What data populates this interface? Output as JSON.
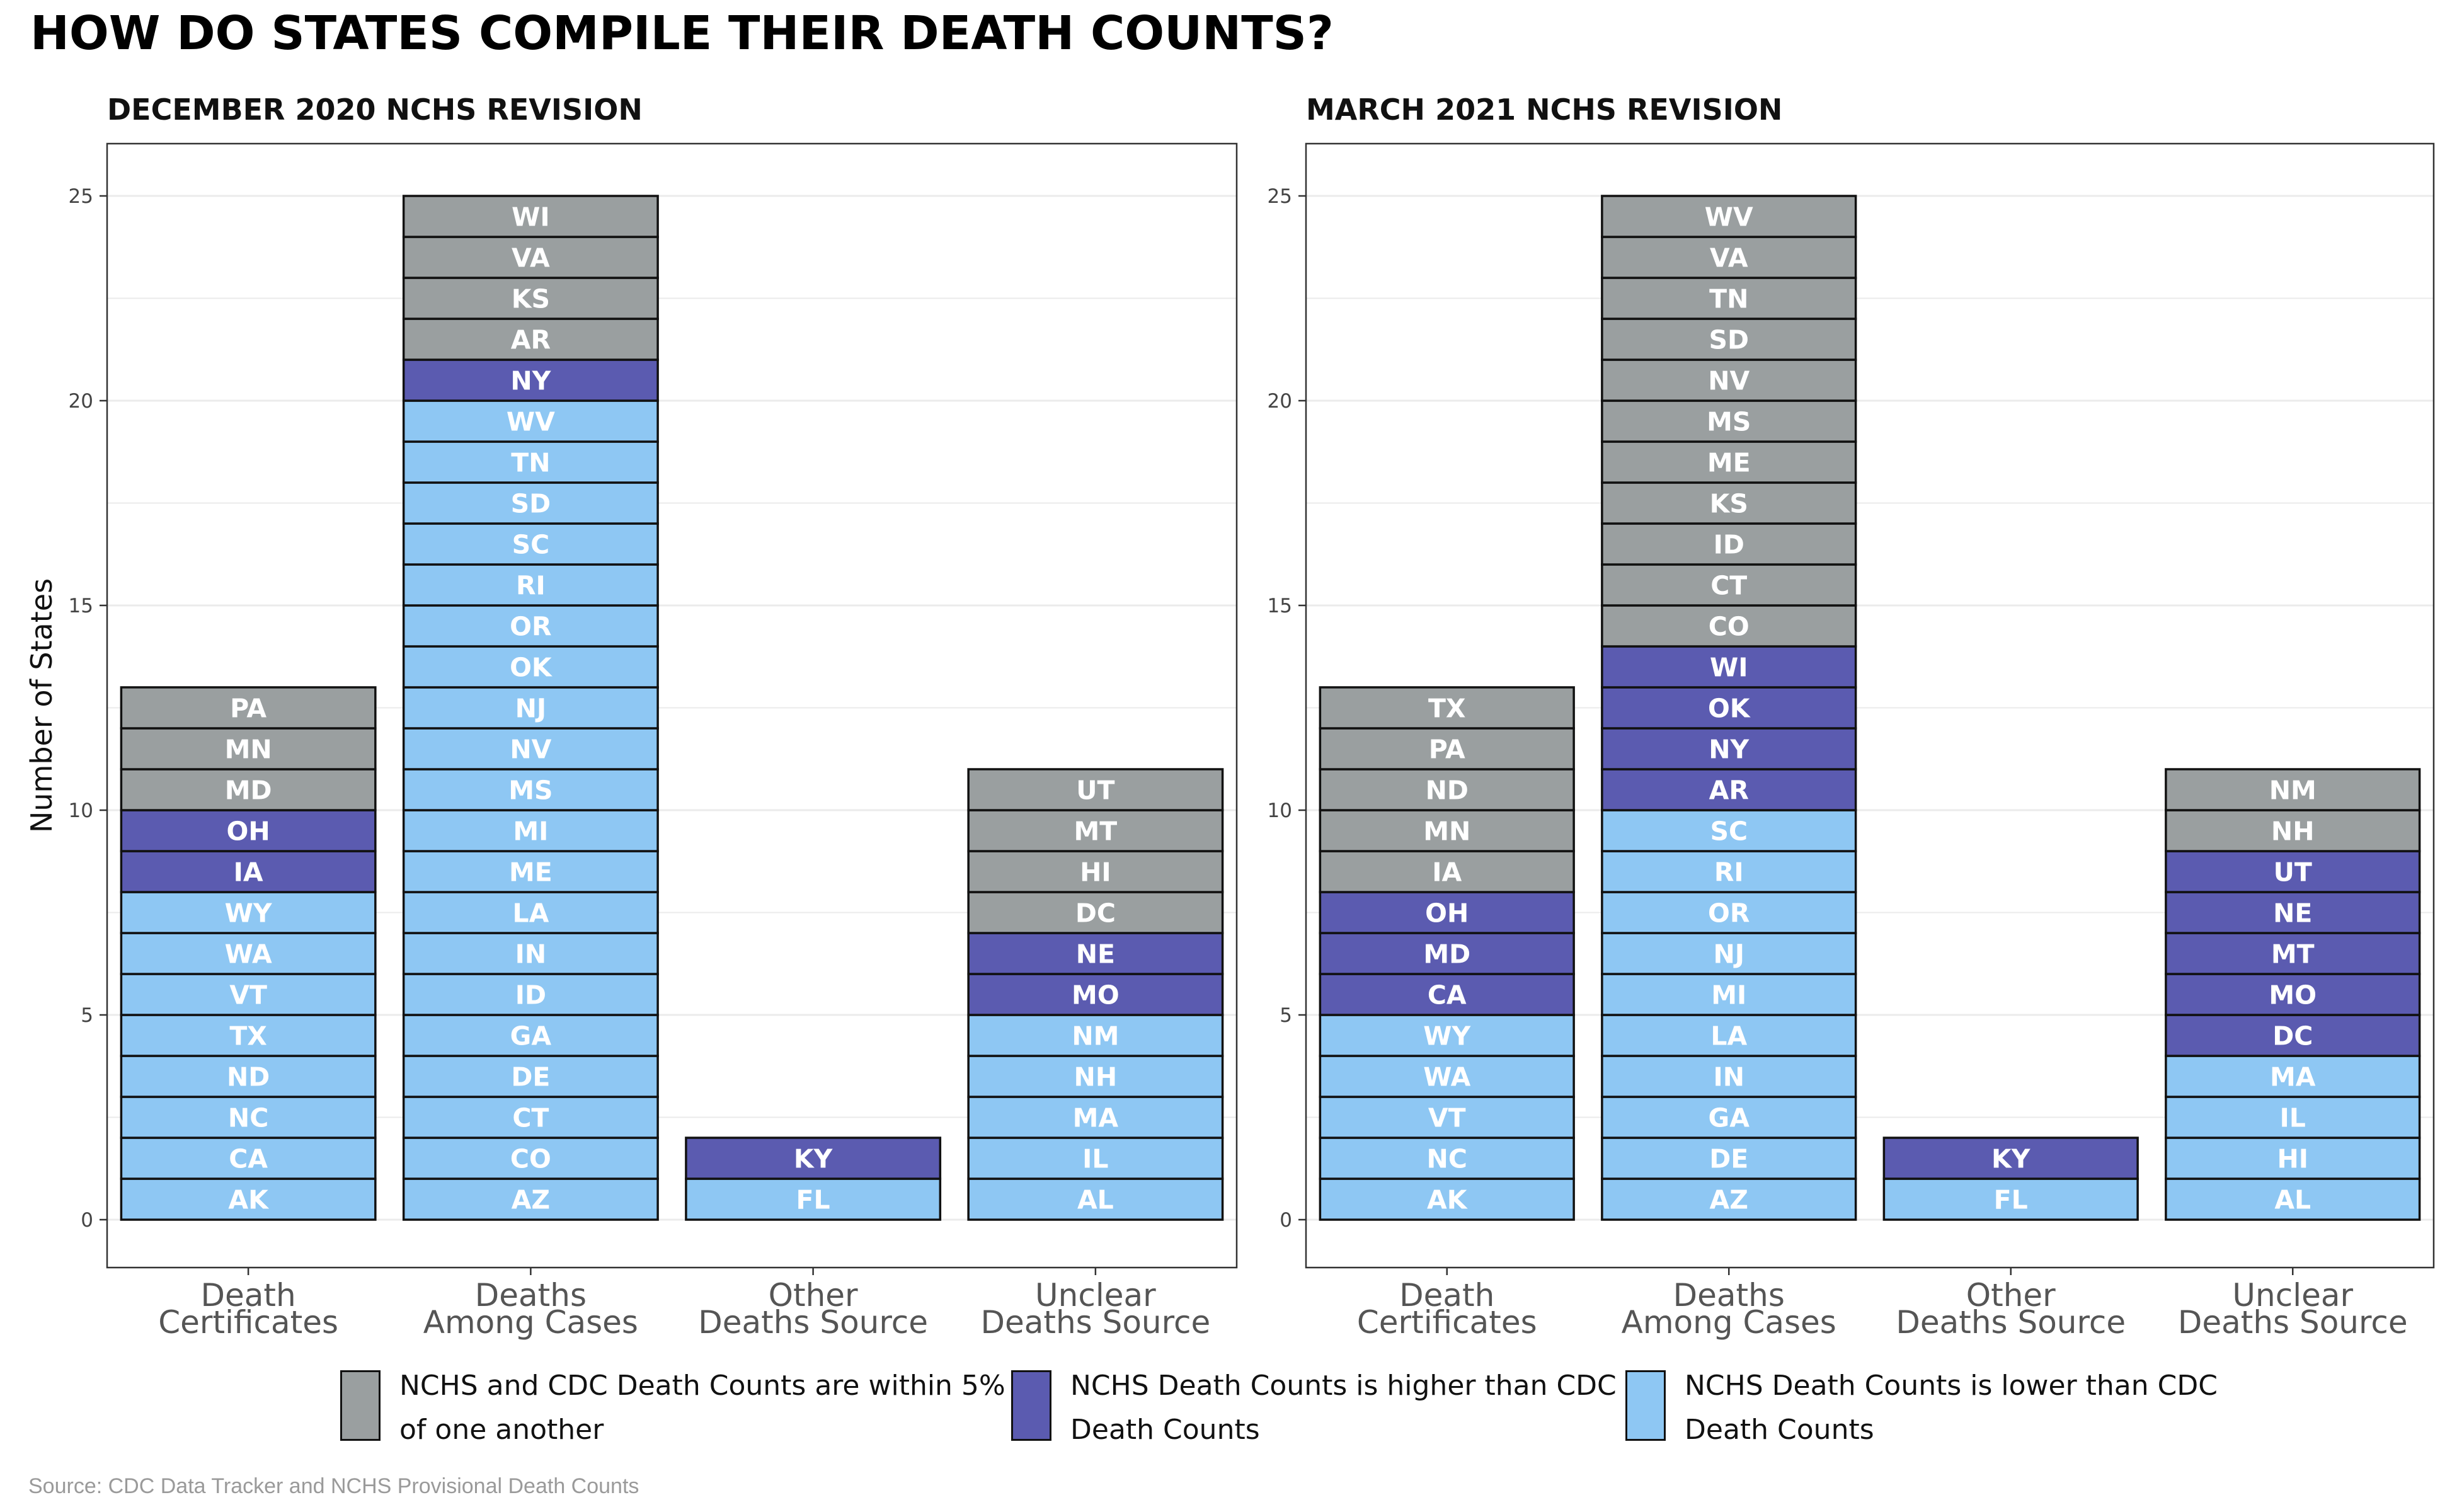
{
  "title": "HOW DO STATES COMPILE THEIR DEATH COUNTS?",
  "source": "Source: CDC Data Tracker and NCHS Provisional Death Counts",
  "ylabel": "Number of States",
  "colors": {
    "within_5pct": "#9a9fa0",
    "higher": "#5b5bb0",
    "lower": "#8ec7f3",
    "outline": "#111111",
    "grid": "#ebebeb"
  },
  "legend": [
    {
      "key": "within_5pct",
      "label": "NCHS and CDC Death Counts are within 5% of one another"
    },
    {
      "key": "higher",
      "label": "NCHS Death Counts is higher than CDC Death Counts"
    },
    {
      "key": "lower",
      "label": "NCHS Death Counts is lower than CDC Death Counts"
    }
  ],
  "chart_data": [
    {
      "type": "bar",
      "stacked": true,
      "title": "DECEMBER 2020 NCHS REVISION",
      "categories": [
        "Death Certificates",
        "Deaths Among Cases",
        "Other Deaths Source",
        "Unclear Deaths Source"
      ],
      "ylim": [
        0,
        25
      ],
      "yticks": [
        0,
        5,
        10,
        15,
        20,
        25
      ],
      "grid": true,
      "stacks": [
        {
          "category": "Death Certificates",
          "segments": [
            {
              "label": "AK",
              "group": "lower"
            },
            {
              "label": "CA",
              "group": "lower"
            },
            {
              "label": "NC",
              "group": "lower"
            },
            {
              "label": "ND",
              "group": "lower"
            },
            {
              "label": "TX",
              "group": "lower"
            },
            {
              "label": "VT",
              "group": "lower"
            },
            {
              "label": "WA",
              "group": "lower"
            },
            {
              "label": "WY",
              "group": "lower"
            },
            {
              "label": "IA",
              "group": "higher"
            },
            {
              "label": "OH",
              "group": "higher"
            },
            {
              "label": "MD",
              "group": "within_5pct"
            },
            {
              "label": "MN",
              "group": "within_5pct"
            },
            {
              "label": "PA",
              "group": "within_5pct"
            }
          ]
        },
        {
          "category": "Deaths Among Cases",
          "segments": [
            {
              "label": "AZ",
              "group": "lower"
            },
            {
              "label": "CO",
              "group": "lower"
            },
            {
              "label": "CT",
              "group": "lower"
            },
            {
              "label": "DE",
              "group": "lower"
            },
            {
              "label": "GA",
              "group": "lower"
            },
            {
              "label": "ID",
              "group": "lower"
            },
            {
              "label": "IN",
              "group": "lower"
            },
            {
              "label": "LA",
              "group": "lower"
            },
            {
              "label": "ME",
              "group": "lower"
            },
            {
              "label": "MI",
              "group": "lower"
            },
            {
              "label": "MS",
              "group": "lower"
            },
            {
              "label": "NV",
              "group": "lower"
            },
            {
              "label": "NJ",
              "group": "lower"
            },
            {
              "label": "OK",
              "group": "lower"
            },
            {
              "label": "OR",
              "group": "lower"
            },
            {
              "label": "RI",
              "group": "lower"
            },
            {
              "label": "SC",
              "group": "lower"
            },
            {
              "label": "SD",
              "group": "lower"
            },
            {
              "label": "TN",
              "group": "lower"
            },
            {
              "label": "WV",
              "group": "lower"
            },
            {
              "label": "NY",
              "group": "higher"
            },
            {
              "label": "AR",
              "group": "within_5pct"
            },
            {
              "label": "KS",
              "group": "within_5pct"
            },
            {
              "label": "VA",
              "group": "within_5pct"
            },
            {
              "label": "WI",
              "group": "within_5pct"
            }
          ]
        },
        {
          "category": "Other Deaths Source",
          "segments": [
            {
              "label": "FL",
              "group": "lower"
            },
            {
              "label": "KY",
              "group": "higher"
            }
          ]
        },
        {
          "category": "Unclear Deaths Source",
          "segments": [
            {
              "label": "AL",
              "group": "lower"
            },
            {
              "label": "IL",
              "group": "lower"
            },
            {
              "label": "MA",
              "group": "lower"
            },
            {
              "label": "NH",
              "group": "lower"
            },
            {
              "label": "NM",
              "group": "lower"
            },
            {
              "label": "MO",
              "group": "higher"
            },
            {
              "label": "NE",
              "group": "higher"
            },
            {
              "label": "DC",
              "group": "within_5pct"
            },
            {
              "label": "HI",
              "group": "within_5pct"
            },
            {
              "label": "MT",
              "group": "within_5pct"
            },
            {
              "label": "UT",
              "group": "within_5pct"
            }
          ]
        }
      ]
    },
    {
      "type": "bar",
      "stacked": true,
      "title": "MARCH 2021 NCHS REVISION",
      "categories": [
        "Death Certificates",
        "Deaths Among Cases",
        "Other Deaths Source",
        "Unclear Deaths Source"
      ],
      "ylim": [
        0,
        25
      ],
      "yticks": [
        0,
        5,
        10,
        15,
        20,
        25
      ],
      "grid": true,
      "stacks": [
        {
          "category": "Death Certificates",
          "segments": [
            {
              "label": "AK",
              "group": "lower"
            },
            {
              "label": "NC",
              "group": "lower"
            },
            {
              "label": "VT",
              "group": "lower"
            },
            {
              "label": "WA",
              "group": "lower"
            },
            {
              "label": "WY",
              "group": "lower"
            },
            {
              "label": "CA",
              "group": "higher"
            },
            {
              "label": "MD",
              "group": "higher"
            },
            {
              "label": "OH",
              "group": "higher"
            },
            {
              "label": "IA",
              "group": "within_5pct"
            },
            {
              "label": "MN",
              "group": "within_5pct"
            },
            {
              "label": "ND",
              "group": "within_5pct"
            },
            {
              "label": "PA",
              "group": "within_5pct"
            },
            {
              "label": "TX",
              "group": "within_5pct"
            }
          ]
        },
        {
          "category": "Deaths Among Cases",
          "segments": [
            {
              "label": "AZ",
              "group": "lower"
            },
            {
              "label": "DE",
              "group": "lower"
            },
            {
              "label": "GA",
              "group": "lower"
            },
            {
              "label": "IN",
              "group": "lower"
            },
            {
              "label": "LA",
              "group": "lower"
            },
            {
              "label": "MI",
              "group": "lower"
            },
            {
              "label": "NJ",
              "group": "lower"
            },
            {
              "label": "OR",
              "group": "lower"
            },
            {
              "label": "RI",
              "group": "lower"
            },
            {
              "label": "SC",
              "group": "lower"
            },
            {
              "label": "AR",
              "group": "higher"
            },
            {
              "label": "NY",
              "group": "higher"
            },
            {
              "label": "OK",
              "group": "higher"
            },
            {
              "label": "WI",
              "group": "higher"
            },
            {
              "label": "CO",
              "group": "within_5pct"
            },
            {
              "label": "CT",
              "group": "within_5pct"
            },
            {
              "label": "ID",
              "group": "within_5pct"
            },
            {
              "label": "KS",
              "group": "within_5pct"
            },
            {
              "label": "ME",
              "group": "within_5pct"
            },
            {
              "label": "MS",
              "group": "within_5pct"
            },
            {
              "label": "NV",
              "group": "within_5pct"
            },
            {
              "label": "SD",
              "group": "within_5pct"
            },
            {
              "label": "TN",
              "group": "within_5pct"
            },
            {
              "label": "VA",
              "group": "within_5pct"
            },
            {
              "label": "WV",
              "group": "within_5pct"
            }
          ]
        },
        {
          "category": "Other Deaths Source",
          "segments": [
            {
              "label": "FL",
              "group": "lower"
            },
            {
              "label": "KY",
              "group": "higher"
            }
          ]
        },
        {
          "category": "Unclear Deaths Source",
          "segments": [
            {
              "label": "AL",
              "group": "lower"
            },
            {
              "label": "HI",
              "group": "lower"
            },
            {
              "label": "IL",
              "group": "lower"
            },
            {
              "label": "MA",
              "group": "lower"
            },
            {
              "label": "DC",
              "group": "higher"
            },
            {
              "label": "MO",
              "group": "higher"
            },
            {
              "label": "MT",
              "group": "higher"
            },
            {
              "label": "NE",
              "group": "higher"
            },
            {
              "label": "UT",
              "group": "higher"
            },
            {
              "label": "NH",
              "group": "within_5pct"
            },
            {
              "label": "NM",
              "group": "within_5pct"
            }
          ]
        }
      ]
    }
  ]
}
